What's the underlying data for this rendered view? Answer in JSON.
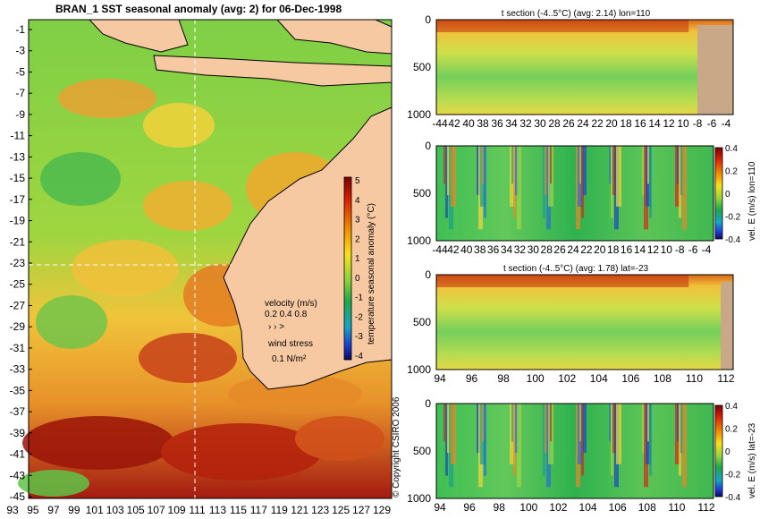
{
  "map": {
    "title": "BRAN_1 SST seasonal anomaly (avg: 2) for 06-Dec-1998",
    "lat_ticks": [
      "-1",
      "-3",
      "-5",
      "-7",
      "-9",
      "-11",
      "-13",
      "-15",
      "-17",
      "-19",
      "-21",
      "-23",
      "-25",
      "-27",
      "-29",
      "-31",
      "-33",
      "-35",
      "-37",
      "-39",
      "-41",
      "-43",
      "-45"
    ],
    "lon_ticks": [
      "93",
      "95",
      "97",
      "99",
      "101",
      "103",
      "105",
      "107",
      "109",
      "111",
      "113",
      "115",
      "117",
      "119",
      "121",
      "123",
      "125",
      "127",
      "129"
    ],
    "colorbar": {
      "label": "temperature seasonal anomaly (°C)",
      "ticks": [
        "5",
        "4",
        "3",
        "2",
        "1",
        "0",
        "-1",
        "-2",
        "-3",
        "-4"
      ]
    },
    "velocity_legend": {
      "title": "velocity (m/s)",
      "values": "0.2 0.4 0.8"
    },
    "wind_legend": {
      "title": "wind stress",
      "value": "0.1 N/m²"
    },
    "copyright": "© Copyright CSIRO 2006",
    "colors": {
      "land": "#f7c9a3",
      "ocean_mid": "#7ed04a"
    }
  },
  "panels": [
    {
      "title": "t section (-4..5°C) (avg: 2.14) lon=110",
      "x_ticks": [
        "-44",
        "42",
        "40",
        "38",
        "36",
        "34",
        "32",
        "30",
        "28",
        "26",
        "24",
        "22",
        "20",
        "18",
        "16",
        "14",
        "12",
        "10",
        "-8",
        "-6",
        "-4"
      ],
      "y_ticks": [
        "0",
        "500",
        "1000"
      ],
      "side_label": "",
      "colorbar_ticks": []
    },
    {
      "title": "",
      "x_ticks": [
        "-44",
        "42",
        "40",
        "38",
        "36",
        "34",
        "32",
        "30",
        "28",
        "26",
        "24",
        "22",
        "20",
        "18",
        "16",
        "14",
        "12",
        "10",
        "-8",
        "-6",
        "-4"
      ],
      "y_ticks": [
        "0",
        "500",
        "1000"
      ],
      "side_label": "vel. E (m/s) lon=110",
      "colorbar_ticks": [
        "0.4",
        "0.2",
        "0",
        "-0.2",
        "-0.4"
      ]
    },
    {
      "title": "t section (-4..5°C) (avg: 1.78) lat=-23",
      "x_ticks": [
        "94",
        "96",
        "98",
        "100",
        "102",
        "104",
        "106",
        "108",
        "110",
        "112"
      ],
      "y_ticks": [
        "0",
        "500",
        "1000"
      ],
      "side_label": "",
      "colorbar_ticks": []
    },
    {
      "title": "",
      "x_ticks": [
        "94",
        "96",
        "98",
        "100",
        "102",
        "104",
        "106",
        "108",
        "110",
        "112"
      ],
      "y_ticks": [
        "0",
        "500",
        "1000"
      ],
      "side_label": "vel. E (m/s) lat=-23",
      "colorbar_ticks": [
        "0.4",
        "0.2",
        "0",
        "-0.2",
        "-0.4"
      ]
    }
  ]
}
